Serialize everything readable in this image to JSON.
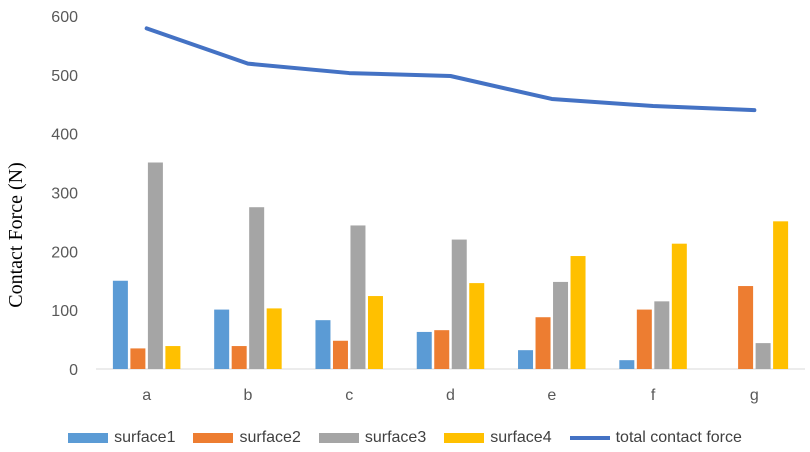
{
  "chart_data": {
    "type": "bar",
    "title": "",
    "xlabel": "",
    "ylabel": "Contact Force (N)",
    "ylim": [
      0,
      600
    ],
    "yticks": [
      0,
      100,
      200,
      300,
      400,
      500,
      600
    ],
    "grid": false,
    "legend_position": "bottom",
    "categories": [
      "a",
      "b",
      "c",
      "d",
      "e",
      "f",
      "g"
    ],
    "series": [
      {
        "name": "surface1",
        "type": "bar",
        "color": "#5B9BD5",
        "values": [
          150,
          101,
          83,
          63,
          32,
          15,
          0
        ]
      },
      {
        "name": "surface2",
        "type": "bar",
        "color": "#ED7D31",
        "values": [
          35,
          39,
          48,
          66,
          88,
          101,
          141
        ]
      },
      {
        "name": "surface3",
        "type": "bar",
        "color": "#A5A5A5",
        "values": [
          351,
          275,
          244,
          220,
          148,
          115,
          44
        ]
      },
      {
        "name": "surface4",
        "type": "bar",
        "color": "#FFC000",
        "values": [
          39,
          103,
          124,
          146,
          192,
          213,
          251
        ]
      },
      {
        "name": "total contact force",
        "type": "line",
        "color": "#4472C4",
        "values": [
          579,
          519,
          503,
          498,
          459,
          447,
          440
        ]
      }
    ]
  }
}
